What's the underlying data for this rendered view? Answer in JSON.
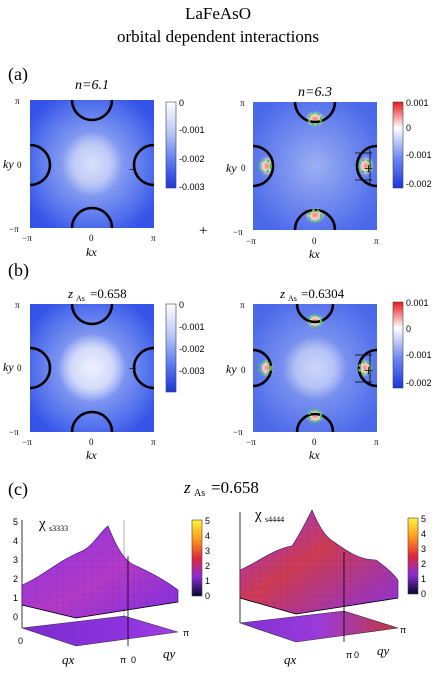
{
  "figure": {
    "title_line1": "LaFeAsO",
    "title_line2": "orbital dependent interactions",
    "panel_a": {
      "label": "(a)",
      "left_title": "n=6.1",
      "right_title": "n=6.3"
    },
    "panel_b": {
      "label": "(b)",
      "left_title": "zAs=0.658",
      "right_title": "zAs=0.6304"
    },
    "panel_c": {
      "label": "(c)",
      "title": "zAs=0.658",
      "left_title": "χs3333",
      "right_title": "χs4444"
    },
    "axes": {
      "kx": "kx",
      "ky": "ky",
      "ticks": [
        "−π",
        "0",
        "π"
      ],
      "qx": "qx",
      "qy": "qy",
      "q_ticks": [
        "0",
        "π"
      ]
    },
    "plus_sign": "+",
    "minus_sign": "−",
    "colorbars": {
      "a_left": [
        "0",
        "-0.001",
        "-0.002",
        "-0.003"
      ],
      "a_right": [
        "0.001",
        "0",
        "-0.001",
        "-0.002"
      ],
      "b_left": [
        "0",
        "-0.001",
        "-0.002",
        "-0.003"
      ],
      "b_right": [
        "0.001",
        "0",
        "-0.001",
        "-0.002"
      ],
      "c": [
        "5",
        "4",
        "3",
        "2",
        "1",
        "0"
      ],
      "c_zaxis": [
        "5",
        "4",
        "3",
        "2",
        "1",
        "0"
      ]
    }
  },
  "colors": {
    "deep_blue": "#2e46e6",
    "mid_blue": "#5b78ee",
    "light_blue": "#a9bcf4",
    "red": "#e23a2a",
    "fermi_line": "#000000",
    "green_node": "#3fcf4a",
    "surface_purple": "#9c35e8",
    "surface_red": "#d8352e"
  }
}
